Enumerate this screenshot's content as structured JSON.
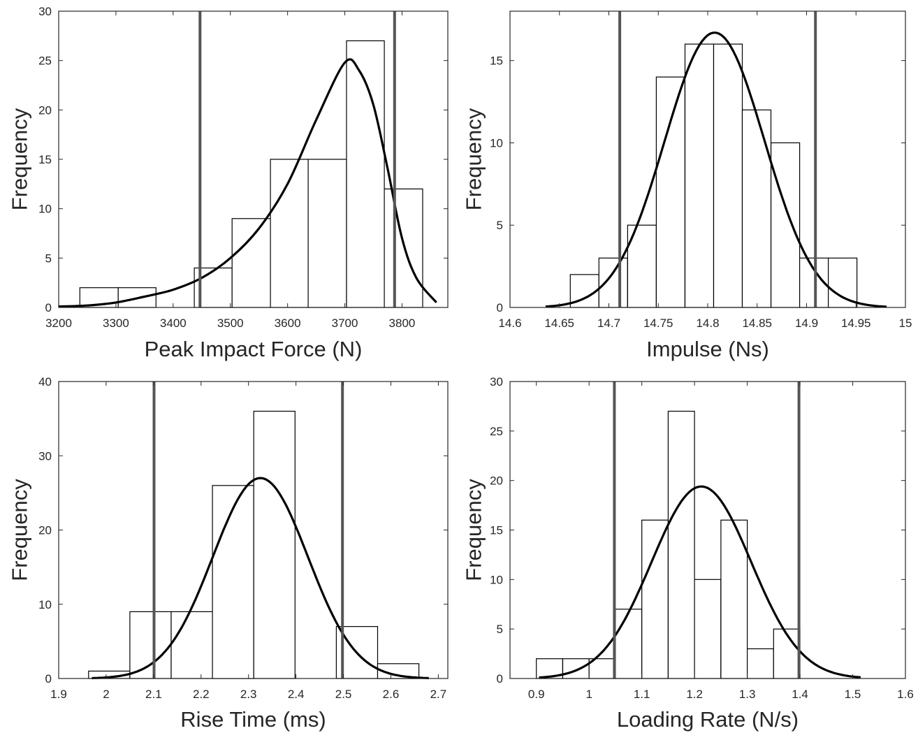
{
  "chart_data": [
    {
      "type": "bar",
      "subtype": "histogram",
      "xlabel": "Peak Impact Force (N)",
      "ylabel": "Frequency",
      "xlim": [
        3200,
        3880
      ],
      "ylim": [
        0,
        30
      ],
      "xticks": [
        3200,
        3300,
        3400,
        3500,
        3600,
        3700,
        3800
      ],
      "yticks": [
        0,
        5,
        10,
        15,
        20,
        25,
        30
      ],
      "bins": [
        {
          "x0": 3237,
          "x1": 3304,
          "count": 2
        },
        {
          "x0": 3304,
          "x1": 3370,
          "count": 2
        },
        {
          "x0": 3437,
          "x1": 3503,
          "count": 4
        },
        {
          "x0": 3503,
          "x1": 3570,
          "count": 9
        },
        {
          "x0": 3570,
          "x1": 3636,
          "count": 15
        },
        {
          "x0": 3636,
          "x1": 3703,
          "count": 15
        },
        {
          "x0": 3703,
          "x1": 3769,
          "count": 27
        },
        {
          "x0": 3769,
          "x1": 3836,
          "count": 12
        }
      ],
      "fit_curve": {
        "x": [
          3200,
          3250,
          3300,
          3350,
          3400,
          3450,
          3500,
          3550,
          3600,
          3650,
          3700,
          3725,
          3750,
          3775,
          3800,
          3825,
          3860
        ],
        "y": [
          0.1,
          0.2,
          0.5,
          1.1,
          1.8,
          3.0,
          5.0,
          8.0,
          12.5,
          19.0,
          24.8,
          24.0,
          20.5,
          14.0,
          7.0,
          3.0,
          0.5
        ]
      },
      "vlines": [
        3447,
        3787
      ]
    },
    {
      "type": "bar",
      "subtype": "histogram",
      "xlabel": "Impulse (Ns)",
      "ylabel": "Frequency",
      "xlim": [
        14.6,
        15
      ],
      "ylim": [
        0,
        18
      ],
      "xticks": [
        14.6,
        14.65,
        14.7,
        14.75,
        14.8,
        14.85,
        14.9,
        14.95,
        15
      ],
      "xtick_labels": [
        "14.6",
        "14.65",
        "14.7",
        "14.75",
        "14.8",
        "14.85",
        "14.9",
        "14.95",
        "15"
      ],
      "yticks": [
        0,
        5,
        10,
        15
      ],
      "bins": [
        {
          "x0": 14.661,
          "x1": 14.69,
          "count": 2
        },
        {
          "x0": 14.69,
          "x1": 14.719,
          "count": 3
        },
        {
          "x0": 14.719,
          "x1": 14.748,
          "count": 5
        },
        {
          "x0": 14.748,
          "x1": 14.777,
          "count": 14
        },
        {
          "x0": 14.777,
          "x1": 14.806,
          "count": 16
        },
        {
          "x0": 14.806,
          "x1": 14.835,
          "count": 16
        },
        {
          "x0": 14.835,
          "x1": 14.864,
          "count": 12
        },
        {
          "x0": 14.864,
          "x1": 14.893,
          "count": 10
        },
        {
          "x0": 14.893,
          "x1": 14.922,
          "count": 3
        },
        {
          "x0": 14.922,
          "x1": 14.951,
          "count": 3
        }
      ],
      "fit_curve": {
        "mean": 14.807,
        "sd": 0.0505,
        "peak": 16.7,
        "xmin": 14.636,
        "xmax": 14.981
      },
      "vlines": [
        14.711,
        14.909
      ]
    },
    {
      "type": "bar",
      "subtype": "histogram",
      "xlabel": "Rise Time (ms)",
      "ylabel": "Frequency",
      "xlim": [
        1.9,
        2.72
      ],
      "ylim": [
        0,
        40
      ],
      "xticks": [
        1.9,
        2.0,
        2.1,
        2.2,
        2.3,
        2.4,
        2.5,
        2.6,
        2.7
      ],
      "xtick_labels": [
        "1.9",
        "2",
        "2.1",
        "2.2",
        "2.3",
        "2.4",
        "2.5",
        "2.6",
        "2.7"
      ],
      "yticks": [
        0,
        10,
        20,
        30,
        40
      ],
      "bins": [
        {
          "x0": 1.963,
          "x1": 2.05,
          "count": 1
        },
        {
          "x0": 2.05,
          "x1": 2.137,
          "count": 9
        },
        {
          "x0": 2.137,
          "x1": 2.224,
          "count": 9
        },
        {
          "x0": 2.224,
          "x1": 2.311,
          "count": 26
        },
        {
          "x0": 2.311,
          "x1": 2.398,
          "count": 36
        },
        {
          "x0": 2.485,
          "x1": 2.572,
          "count": 7
        },
        {
          "x0": 2.572,
          "x1": 2.659,
          "count": 2
        }
      ],
      "fit_curve": {
        "mean": 2.325,
        "sd": 0.1003,
        "peak": 27.0,
        "xmin": 1.97,
        "xmax": 2.68
      },
      "vlines": [
        2.101,
        2.498
      ]
    },
    {
      "type": "bar",
      "subtype": "histogram",
      "xlabel": "Loading Rate (N/s)",
      "ylabel": "Frequency",
      "xlim": [
        0.85,
        1.6
      ],
      "ylim": [
        0,
        30
      ],
      "xticks": [
        0.9,
        1.0,
        1.1,
        1.2,
        1.3,
        1.4,
        1.5,
        1.6
      ],
      "xtick_labels": [
        "0.9",
        "1",
        "1.1",
        "1.2",
        "1.3",
        "1.4",
        "1.5",
        "1.6"
      ],
      "yticks": [
        0,
        5,
        10,
        15,
        20,
        25,
        30
      ],
      "bins": [
        {
          "x0": 0.9,
          "x1": 0.95,
          "count": 2
        },
        {
          "x0": 0.95,
          "x1": 1.0,
          "count": 2
        },
        {
          "x0": 1.0,
          "x1": 1.05,
          "count": 2
        },
        {
          "x0": 1.05,
          "x1": 1.1,
          "count": 7
        },
        {
          "x0": 1.1,
          "x1": 1.15,
          "count": 16
        },
        {
          "x0": 1.15,
          "x1": 1.2,
          "count": 27
        },
        {
          "x0": 1.2,
          "x1": 1.25,
          "count": 10
        },
        {
          "x0": 1.25,
          "x1": 1.3,
          "count": 16
        },
        {
          "x0": 1.3,
          "x1": 1.35,
          "count": 3
        },
        {
          "x0": 1.35,
          "x1": 1.4,
          "count": 5
        }
      ],
      "fit_curve": {
        "mean": 1.213,
        "sd": 0.0945,
        "peak": 19.4,
        "xmin": 0.905,
        "xmax": 1.515
      },
      "vlines": [
        1.048,
        1.398
      ]
    }
  ]
}
